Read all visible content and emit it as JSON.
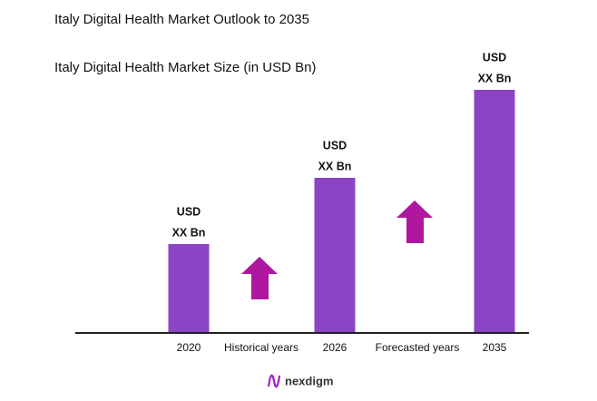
{
  "chart_data": {
    "type": "bar",
    "title": "Italy Digital Health Market Outlook to 2035",
    "subtitle": "Italy Digital Health Market Size (in USD Bn)",
    "categories": [
      "2020",
      "2026",
      "2035"
    ],
    "values": [
      97,
      170,
      267
    ],
    "value_labels": [
      [
        "USD",
        "XX Bn"
      ],
      [
        "USD",
        "XX Bn"
      ],
      [
        "USD",
        "XX Bn"
      ]
    ],
    "color": "#8b44c4",
    "period_labels": [
      "Historical years",
      "Forecasted years"
    ],
    "logo": "nexdigm"
  }
}
